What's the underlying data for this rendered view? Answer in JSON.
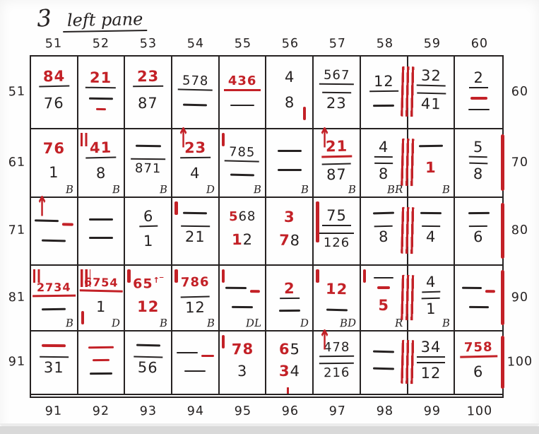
{
  "title": {
    "number": "3",
    "text": "left pane"
  },
  "colors": {
    "red": "#c32127",
    "ink": "#262222"
  },
  "axis": {
    "top": [
      "51",
      "52",
      "53",
      "54",
      "55",
      "56",
      "57",
      "58",
      "59",
      "60"
    ],
    "bottom": [
      "91",
      "92",
      "93",
      "94",
      "95",
      "96",
      "97",
      "98",
      "99",
      "100"
    ],
    "left": [
      "51",
      "61",
      "71",
      "81",
      "91"
    ],
    "right": [
      "60",
      "70",
      "80",
      "90",
      "100"
    ]
  },
  "grid": {
    "rows": [
      {
        "cells": [
          {
            "it": [
              [
                "x",
                "84",
                "r",
                "u"
              ],
              [
                "x",
                "76",
                "k",
                ""
              ]
            ]
          },
          {
            "it": [
              [
                "x",
                "21",
                "r",
                "u"
              ],
              [
                "l",
                "k",
                34
              ],
              [
                "l",
                "r",
                14,
                3
              ]
            ]
          },
          {
            "it": [
              [
                "x",
                "23",
                "r",
                "u"
              ],
              [
                "x",
                "87",
                "k",
                ""
              ]
            ]
          },
          {
            "it": [
              [
                "x",
                "578",
                "k",
                "u"
              ],
              [
                "l",
                "k",
                34
              ]
            ]
          },
          {
            "it": [
              [
                "x",
                "436",
                "r",
                "U"
              ],
              [
                "l",
                "k",
                34
              ]
            ]
          },
          {
            "it": [
              [
                "x",
                "4",
                "k",
                ""
              ],
              [
                "x",
                "8",
                "k",
                ""
              ]
            ],
            "ticks": [
              {
                "k": "s",
                "p": "br"
              }
            ]
          },
          {
            "it": [
              [
                "x",
                "567",
                "k",
                "u"
              ],
              [
                "x",
                "23",
                "k",
                "o"
              ]
            ]
          },
          {
            "it": [
              [
                "x",
                "12",
                "k",
                "u"
              ],
              [
                "l",
                "k",
                30
              ]
            ],
            "band": 1
          },
          {
            "it": [
              [
                "x",
                "32",
                "k",
                "u"
              ],
              [
                "x",
                "41",
                "k",
                "o"
              ]
            ]
          },
          {
            "it": [
              [
                "x",
                "2",
                "k",
                "u"
              ],
              [
                "l",
                "r",
                24,
                4
              ],
              [
                "l",
                "k",
                30
              ]
            ]
          }
        ]
      },
      {
        "cells": [
          {
            "it": [
              [
                "x",
                "76",
                "r",
                ""
              ],
              [
                "x",
                "1",
                "k",
                ""
              ]
            ],
            "c": "B"
          },
          {
            "it": [
              [
                "x",
                "41",
                "r",
                "u"
              ],
              [
                "x",
                "8",
                "k",
                ""
              ]
            ],
            "ticks": [
              {
                "k": "d",
                "p": "tl"
              }
            ],
            "c": "B"
          },
          {
            "it": [
              [
                "l",
                "k",
                36
              ],
              [
                "x",
                "871",
                "k",
                "o"
              ]
            ],
            "c": "B"
          },
          {
            "it": [
              [
                "x",
                "23",
                "r",
                "u"
              ],
              [
                "x",
                "4",
                "k",
                ""
              ]
            ],
            "ticks": [
              {
                "k": "a",
                "p": "tl"
              }
            ],
            "c": "D"
          },
          {
            "it": [
              [
                "x",
                "785",
                "k",
                "u"
              ],
              [
                "l",
                "k",
                34
              ]
            ],
            "ticks": [
              {
                "k": "s",
                "p": "tl"
              }
            ],
            "c": "B"
          },
          {
            "it": [
              [
                "l",
                "k",
                34
              ],
              [
                "l",
                "k",
                34
              ]
            ],
            "c": "B"
          },
          {
            "it": [
              [
                "x",
                "21",
                "r",
                "U"
              ],
              [
                "x",
                "87",
                "k",
                "o"
              ]
            ],
            "ticks": [
              {
                "k": "a",
                "p": "tl"
              }
            ],
            "c": "B"
          },
          {
            "it": [
              [
                "x",
                "4",
                "k",
                "u"
              ],
              [
                "x",
                "8",
                "k",
                "o"
              ]
            ],
            "c": "BR",
            "band": 1
          },
          {
            "it": [
              [
                "l",
                "k",
                34
              ],
              [
                "x",
                "1",
                "r",
                ""
              ]
            ],
            "c": "B"
          },
          {
            "it": [
              [
                "x",
                "5",
                "k",
                "u"
              ],
              [
                "x",
                "8",
                "k",
                "o"
              ]
            ],
            "rline": 1
          }
        ]
      },
      {
        "cells": [
          {
            "it": [
              [
                "p",
                [
                  [
                    "k",
                    34
                  ],
                  [
                    "r",
                    16
                  ]
                ]
              ],
              [
                "l",
                "k",
                34
              ]
            ],
            "ticks": [
              {
                "k": "a",
                "p": "tl"
              }
            ]
          },
          {
            "it": [
              [
                "l",
                "k",
                34
              ],
              [
                "l",
                "k",
                34
              ]
            ]
          },
          {
            "it": [
              [
                "x",
                "6",
                "k",
                "u"
              ],
              [
                "x",
                "1",
                "k",
                ""
              ]
            ]
          },
          {
            "it": [
              [
                "l",
                "k",
                34
              ],
              [
                "x",
                "21",
                "k",
                "o"
              ]
            ],
            "ticks": [
              {
                "k": "s",
                "p": "tl"
              }
            ]
          },
          {
            "it": [
              [
                "m",
                [
                  [
                    "5",
                    "r"
                  ],
                  [
                    "68",
                    "k"
                  ]
                ]
              ],
              [
                "m",
                [
                  [
                    "1",
                    "r"
                  ],
                  [
                    "2",
                    "k"
                  ]
                ]
              ]
            ]
          },
          {
            "it": [
              [
                "x",
                "3",
                "r",
                ""
              ],
              [
                "m",
                [
                  [
                    "7",
                    "r"
                  ],
                  [
                    "8",
                    "k"
                  ]
                ]
              ]
            ]
          },
          {
            "it": [
              [
                "x",
                "75",
                "k",
                "u"
              ],
              [
                "x",
                "126",
                "k",
                "o"
              ]
            ],
            "ticks": [
              {
                "k": "t",
                "p": "tl"
              }
            ]
          },
          {
            "it": [
              [
                "l",
                "k",
                30
              ],
              [
                "x",
                "8",
                "k",
                "o"
              ]
            ],
            "band": 1
          },
          {
            "it": [
              [
                "l",
                "k",
                30
              ],
              [
                "x",
                "4",
                "k",
                "o"
              ]
            ]
          },
          {
            "it": [
              [
                "l",
                "k",
                30
              ],
              [
                "x",
                "6",
                "k",
                "o"
              ]
            ],
            "rline": 1
          }
        ]
      },
      {
        "cells": [
          {
            "it": [
              [
                "x",
                "2734",
                "r",
                "U"
              ],
              [
                "l",
                "k",
                34
              ]
            ],
            "ticks": [
              {
                "k": "d",
                "p": "tl"
              }
            ],
            "c": "B"
          },
          {
            "it": [
              [
                "x",
                "6754",
                "r",
                "U"
              ],
              [
                "x",
                "1",
                "k",
                ""
              ]
            ],
            "ticks": [
              {
                "k": "w",
                "p": "tl"
              },
              {
                "k": "s",
                "p": "bl"
              }
            ],
            "c": "D"
          },
          {
            "it": [
              [
                "s",
                "65",
                "r",
                "↑‾"
              ],
              [
                "x",
                "12",
                "r",
                ""
              ]
            ],
            "ticks": [
              {
                "k": "s",
                "p": "tl"
              }
            ],
            "c": "B"
          },
          {
            "it": [
              [
                "x",
                "786",
                "r",
                ""
              ],
              [
                "x",
                "12",
                "k",
                "o"
              ]
            ],
            "ticks": [
              {
                "k": "s",
                "p": "tl"
              }
            ],
            "c": "B"
          },
          {
            "it": [
              [
                "p",
                [
                  [
                    "k",
                    30
                  ],
                  [
                    "r",
                    14
                  ]
                ]
              ],
              [
                "l",
                "k",
                30
              ]
            ],
            "ticks": [
              {
                "k": "s",
                "p": "tl"
              }
            ],
            "c": "DL"
          },
          {
            "it": [
              [
                "x",
                "2",
                "r",
                "u"
              ],
              [
                "l",
                "k",
                30
              ]
            ],
            "c": "D"
          },
          {
            "it": [
              [
                "x",
                "12",
                "r",
                ""
              ],
              [
                "l",
                "k",
                30
              ]
            ],
            "ticks": [
              {
                "k": "s",
                "p": "tl"
              }
            ],
            "c": "BD"
          },
          {
            "it": [
              [
                "l",
                "k",
                28
              ],
              [
                "l",
                "r",
                18,
                4
              ],
              [
                "x",
                "5",
                "r",
                ""
              ]
            ],
            "ticks": [
              {
                "k": "s",
                "p": "tl"
              }
            ],
            "c": "R",
            "band": 1
          },
          {
            "it": [
              [
                "x",
                "4",
                "k",
                "u"
              ],
              [
                "x",
                "1",
                "k",
                "o"
              ]
            ],
            "c": "B"
          },
          {
            "it": [
              [
                "p",
                [
                  [
                    "k",
                    28
                  ],
                  [
                    "r",
                    14
                  ]
                ]
              ],
              [
                "l",
                "k",
                28
              ]
            ],
            "rline": 1
          }
        ]
      },
      {
        "cells": [
          {
            "it": [
              [
                "l",
                "r",
                34,
                4
              ],
              [
                "x",
                "31",
                "k",
                "o"
              ]
            ]
          },
          {
            "it": [
              [
                "l",
                "r",
                36,
                3
              ],
              [
                "l",
                "r",
                24,
                3
              ],
              [
                "l",
                "k",
                32
              ]
            ]
          },
          {
            "it": [
              [
                "l",
                "k",
                34
              ],
              [
                "x",
                "56",
                "k",
                "o"
              ]
            ]
          },
          {
            "it": [
              [
                "p",
                [
                  [
                    "k",
                    30
                  ],
                  [
                    "r",
                    18
                  ]
                ]
              ],
              [
                "l",
                "k",
                30
              ]
            ]
          },
          {
            "it": [
              [
                "x",
                "78",
                "r",
                ""
              ],
              [
                "x",
                "3",
                "k",
                ""
              ]
            ],
            "ticks": [
              {
                "k": "s",
                "p": "tl"
              }
            ]
          },
          {
            "it": [
              [
                "m",
                [
                  [
                    "6",
                    "r"
                  ],
                  [
                    "5",
                    "k"
                  ]
                ]
              ],
              [
                "m",
                [
                  [
                    "3",
                    "r"
                  ],
                  [
                    "4",
                    "k"
                  ]
                ]
              ]
            ],
            "ticks": [
              {
                "k": "s",
                "p": "bc"
              }
            ]
          },
          {
            "it": [
              [
                "x",
                "478",
                "k",
                "u"
              ],
              [
                "x",
                "216",
                "k",
                "o"
              ]
            ],
            "ticks": [
              {
                "k": "a",
                "p": "tl"
              }
            ]
          },
          {
            "it": [
              [
                "l",
                "k",
                30
              ],
              [
                "l",
                "k",
                30
              ]
            ],
            "band": 1
          },
          {
            "it": [
              [
                "x",
                "34",
                "k",
                "u"
              ],
              [
                "x",
                "12",
                "k",
                "o"
              ]
            ]
          },
          {
            "it": [
              [
                "x",
                "758",
                "r",
                "U"
              ],
              [
                "x",
                "6",
                "k",
                ""
              ]
            ],
            "rline": 1
          }
        ]
      }
    ]
  }
}
